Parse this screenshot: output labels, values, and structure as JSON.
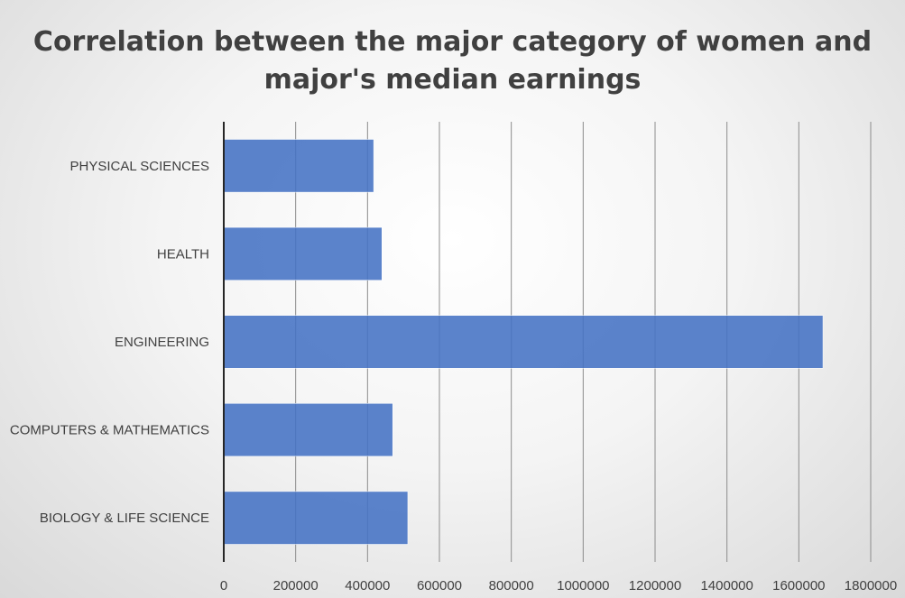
{
  "chart_data": {
    "type": "bar",
    "orientation": "horizontal",
    "title": "Correlation between the major category of women and major's median earnings",
    "categories": [
      "BIOLOGY & LIFE SCIENCE",
      "COMPUTERS & MATHEMATICS",
      "ENGINEERING",
      "HEALTH",
      "PHYSICAL SCIENCES"
    ],
    "values": [
      512000,
      470000,
      1667000,
      440000,
      417000
    ],
    "xlabel": "",
    "ylabel": "",
    "xlim": [
      0,
      1800000
    ],
    "xticks": [
      "0",
      "200000",
      "400000",
      "600000",
      "800000",
      "1000000",
      "1200000",
      "1400000",
      "1600000",
      "1800000"
    ],
    "grid": true,
    "legend": "none",
    "colors": {
      "bar": "#4472C4",
      "grid": "#8c8c8c",
      "axis": "#262626",
      "text": "#404040"
    }
  }
}
